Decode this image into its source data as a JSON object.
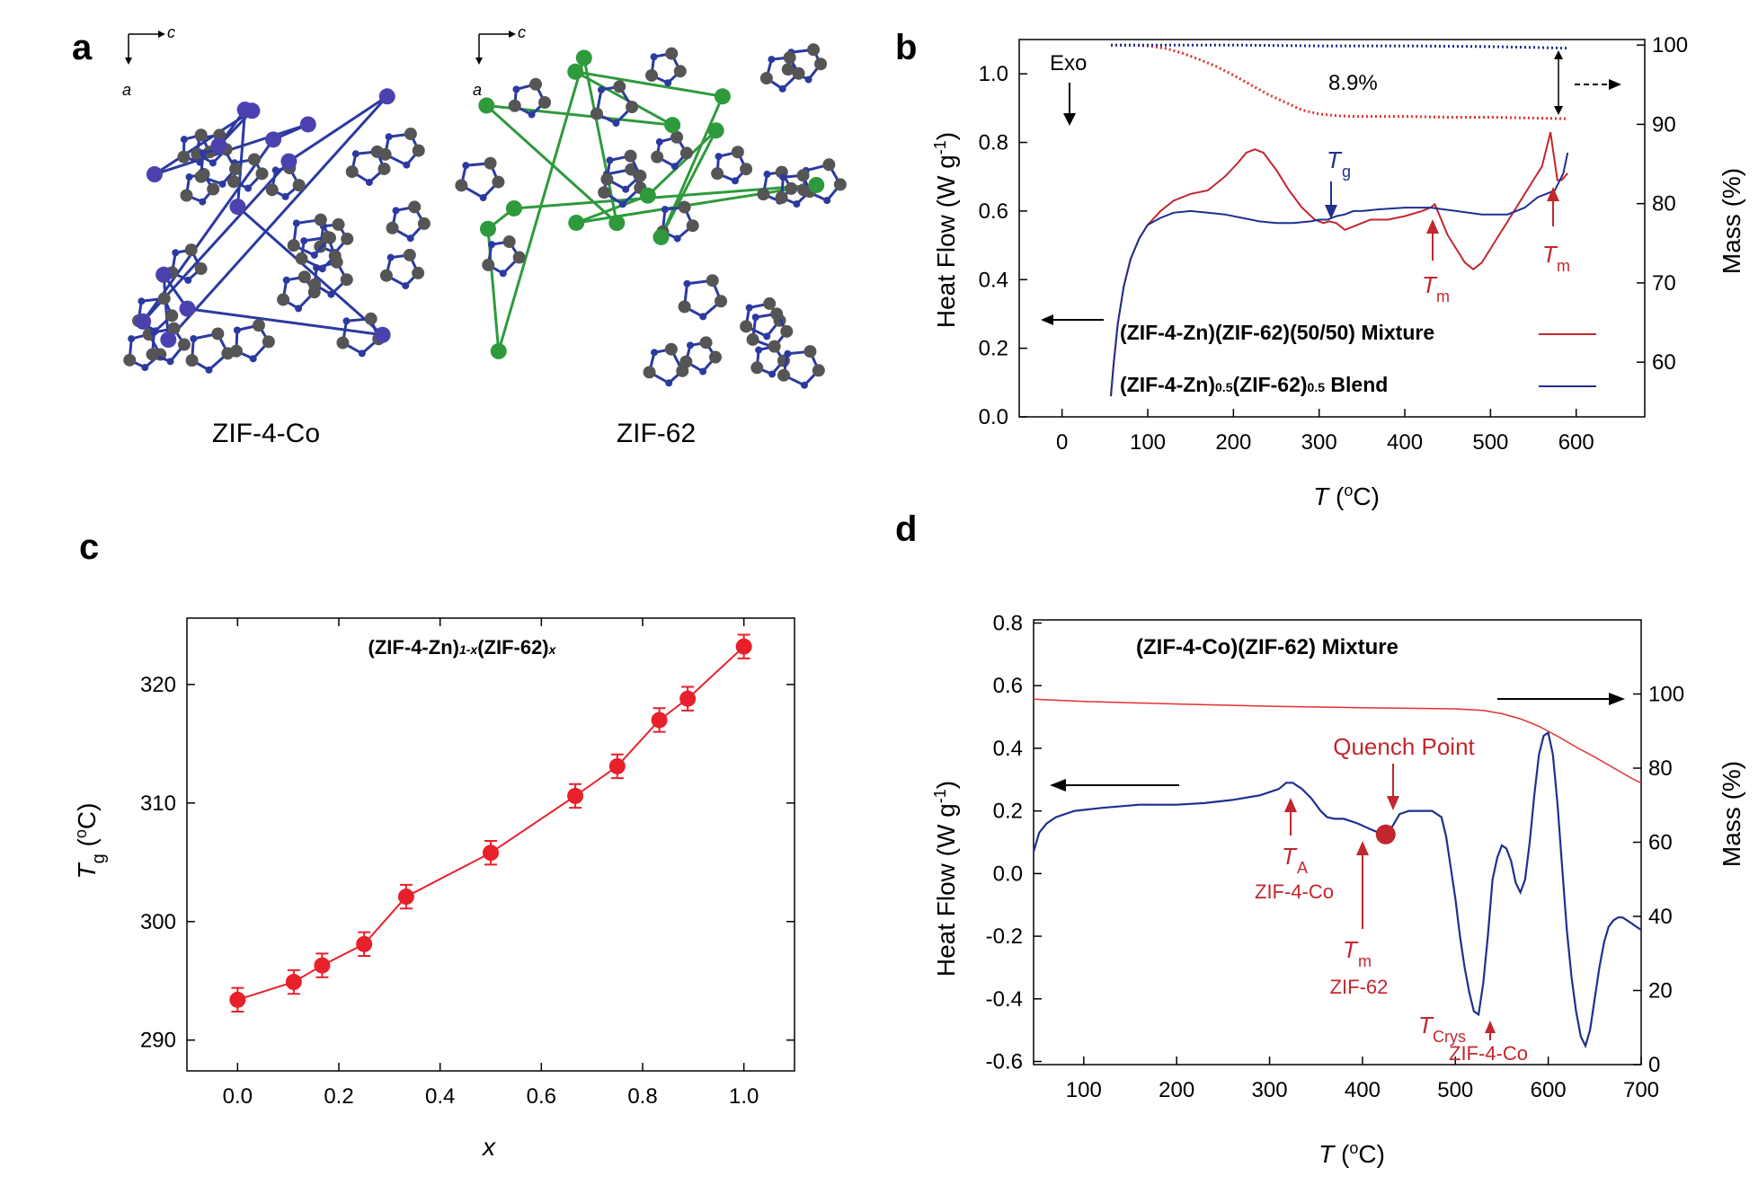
{
  "panels": {
    "a": {
      "letter": "a",
      "axis_c": "c",
      "axis_a": "a",
      "structures": [
        {
          "label": "ZIF-4-Co",
          "metal_color": "#4b42b0"
        },
        {
          "label": "ZIF-62",
          "metal_color": "#2e9a3c"
        }
      ]
    },
    "b": {
      "letter": "b"
    },
    "c": {
      "letter": "c"
    },
    "d": {
      "letter": "d"
    }
  },
  "chart_data": [
    {
      "id": "b",
      "type": "line",
      "xlabel": "T (°C)",
      "ylabel": "Heat Flow (W g-1)",
      "y2label": "Mass (%)",
      "xlim": [
        -50,
        680
      ],
      "ylim": [
        0,
        1.1
      ],
      "y2lim": [
        53.1,
        100.7
      ],
      "xticks": [
        0,
        100,
        200,
        300,
        400,
        500,
        600
      ],
      "yticks": [
        0.0,
        0.2,
        0.4,
        0.6,
        0.8,
        1.0
      ],
      "y2ticks": [
        60,
        70,
        80,
        90,
        100
      ],
      "annotations": {
        "exo": "Exo",
        "mass_loss": "8.9%",
        "tg": "T",
        "tg_sub": "g",
        "tm": "T",
        "tm_sub": "m"
      },
      "legend": [
        {
          "label": "(ZIF-4-Zn)(ZIF-62)(50/50) Mixture",
          "color": "#c1272d"
        },
        {
          "label_parts": [
            "(ZIF-4-Zn)",
            "0.5",
            "(ZIF-62)",
            "0.5",
            " Blend"
          ],
          "color": "#1f2f8f"
        }
      ],
      "series": [
        {
          "name": "(ZIF-4-Zn)(ZIF-62)(50/50) Mixture",
          "axis": "left",
          "color": "#c1272d",
          "x": [
            57,
            60,
            65,
            72,
            80,
            90,
            100,
            115,
            130,
            150,
            170,
            190,
            205,
            215,
            225,
            235,
            250,
            265,
            280,
            295,
            305,
            312,
            320,
            330,
            345,
            360,
            380,
            400,
            420,
            430,
            435,
            440,
            450,
            460,
            470,
            480,
            490,
            500,
            510,
            520,
            530,
            540,
            550,
            560,
            565,
            570,
            574,
            578,
            583,
            590
          ],
          "y": [
            0.06,
            0.15,
            0.27,
            0.38,
            0.46,
            0.52,
            0.56,
            0.6,
            0.63,
            0.65,
            0.66,
            0.7,
            0.74,
            0.77,
            0.78,
            0.77,
            0.72,
            0.66,
            0.61,
            0.575,
            0.565,
            0.57,
            0.565,
            0.545,
            0.56,
            0.575,
            0.575,
            0.585,
            0.6,
            0.61,
            0.62,
            0.59,
            0.53,
            0.49,
            0.45,
            0.43,
            0.45,
            0.49,
            0.53,
            0.57,
            0.61,
            0.65,
            0.69,
            0.73,
            0.78,
            0.83,
            0.76,
            0.69,
            0.69,
            0.71
          ]
        },
        {
          "name": "(ZIF-4-Zn)0.5(ZIF-62)0.5 Blend",
          "axis": "left",
          "color": "#1f2f8f",
          "x": [
            57,
            60,
            65,
            72,
            80,
            90,
            100,
            115,
            130,
            150,
            170,
            190,
            210,
            230,
            250,
            270,
            290,
            300,
            310,
            315,
            320,
            330,
            340,
            350,
            370,
            400,
            430,
            460,
            490,
            520,
            540,
            555,
            565,
            575,
            585,
            590
          ],
          "y": [
            0.06,
            0.15,
            0.27,
            0.38,
            0.46,
            0.52,
            0.56,
            0.58,
            0.595,
            0.6,
            0.595,
            0.59,
            0.58,
            0.57,
            0.565,
            0.565,
            0.57,
            0.575,
            0.575,
            0.58,
            0.585,
            0.59,
            0.6,
            0.6,
            0.605,
            0.61,
            0.61,
            0.6,
            0.59,
            0.59,
            0.61,
            0.64,
            0.65,
            0.66,
            0.71,
            0.77
          ]
        },
        {
          "name": "Mixture mass",
          "axis": "right",
          "color": "#e3302f",
          "style": "dotted",
          "x": [
            57,
            80,
            100,
            120,
            140,
            160,
            180,
            200,
            220,
            240,
            260,
            280,
            300,
            320,
            340,
            400,
            450,
            500,
            550,
            590
          ],
          "y": [
            100,
            100,
            99.9,
            99.6,
            99.0,
            98.2,
            97.3,
            96.2,
            95.0,
            93.8,
            92.8,
            91.8,
            91.3,
            91.1,
            91.0,
            91.0,
            90.9,
            90.9,
            90.8,
            90.7
          ]
        },
        {
          "name": "Blend mass",
          "axis": "right",
          "color": "#1f2f8f",
          "style": "dotted",
          "x": [
            57,
            100,
            200,
            300,
            400,
            500,
            550,
            590
          ],
          "y": [
            100,
            100,
            100,
            99.9,
            99.9,
            99.8,
            99.7,
            99.6
          ]
        }
      ]
    },
    {
      "id": "c",
      "type": "scatter",
      "title_parts": [
        "(ZIF-4-Zn)",
        "1-x",
        "(ZIF-62)",
        "x"
      ],
      "xlabel": "x",
      "ylabel": "Tg (°C)",
      "xlim": [
        -0.1,
        1.1
      ],
      "ylim": [
        287.4,
        325.6
      ],
      "xticks": [
        0.0,
        0.2,
        0.4,
        0.6,
        0.8,
        1.0
      ],
      "yticks": [
        290,
        300,
        310,
        320
      ],
      "color": "#e8202a",
      "x": [
        0.0,
        0.111,
        0.167,
        0.25,
        0.333,
        0.5,
        0.667,
        0.75,
        0.833,
        0.889,
        1.0
      ],
      "y": [
        293.4,
        294.9,
        296.3,
        298.1,
        302.1,
        305.8,
        310.6,
        313.1,
        317.0,
        318.8,
        323.2
      ],
      "yerr": [
        1.0,
        1.0,
        1.0,
        1.0,
        1.0,
        1.0,
        1.0,
        1.0,
        1.0,
        1.0,
        1.0
      ]
    },
    {
      "id": "d",
      "type": "line",
      "title": "(ZIF-4-Co)(ZIF-62) Mixture",
      "xlabel": "T (°C)",
      "ylabel": "Heat Flow (W g-1)",
      "y2label": "Mass (%)",
      "xlim": [
        46,
        700
      ],
      "ylim": [
        -0.61,
        0.81
      ],
      "y2lim": [
        0,
        120
      ],
      "xticks": [
        100,
        200,
        300,
        400,
        500,
        600,
        700
      ],
      "yticks": [
        -0.6,
        -0.4,
        -0.2,
        0.0,
        0.2,
        0.4,
        0.6,
        0.8
      ],
      "y2ticks": [
        0,
        20,
        40,
        60,
        80,
        100
      ],
      "annotations": {
        "quench": "Quench Point",
        "ta": "T",
        "ta_sub": "A",
        "ta_label": "ZIF-4-Co",
        "tm": "T",
        "tm_sub": "m",
        "tm_label": "ZIF-62",
        "tc": "T",
        "tc_sub": "Crys",
        "tc_label": "ZIF-4-Co"
      },
      "quench_point": {
        "x": 425,
        "y": 0.125
      },
      "series": [
        {
          "name": "Heat flow",
          "axis": "left",
          "color": "#1f2f8f",
          "x": [
            46,
            52,
            60,
            70,
            90,
            120,
            160,
            200,
            230,
            260,
            290,
            310,
            318,
            325,
            335,
            345,
            355,
            362,
            370,
            380,
            395,
            410,
            418,
            425,
            432,
            440,
            450,
            460,
            475,
            485,
            490,
            495,
            500,
            505,
            510,
            515,
            520,
            525,
            530,
            535,
            540,
            545,
            550,
            555,
            560,
            565,
            570,
            575,
            580,
            585,
            590,
            595,
            600,
            605,
            610,
            615,
            620,
            625,
            630,
            635,
            640,
            645,
            650,
            655,
            660,
            665,
            670,
            675,
            680,
            685,
            690,
            695,
            700
          ],
          "y": [
            0.07,
            0.13,
            0.16,
            0.18,
            0.2,
            0.21,
            0.22,
            0.22,
            0.225,
            0.235,
            0.25,
            0.27,
            0.29,
            0.29,
            0.27,
            0.24,
            0.2,
            0.18,
            0.175,
            0.175,
            0.16,
            0.14,
            0.13,
            0.125,
            0.15,
            0.19,
            0.2,
            0.2,
            0.2,
            0.18,
            0.12,
            0.02,
            -0.08,
            -0.2,
            -0.3,
            -0.38,
            -0.44,
            -0.45,
            -0.35,
            -0.2,
            -0.02,
            0.05,
            0.09,
            0.08,
            0.04,
            -0.03,
            -0.06,
            -0.02,
            0.1,
            0.25,
            0.38,
            0.44,
            0.45,
            0.38,
            0.22,
            0.02,
            -0.18,
            -0.33,
            -0.44,
            -0.52,
            -0.55,
            -0.5,
            -0.4,
            -0.3,
            -0.22,
            -0.17,
            -0.15,
            -0.14,
            -0.14,
            -0.15,
            -0.16,
            -0.17,
            -0.18
          ]
        },
        {
          "name": "Mass",
          "axis": "right",
          "color": "#e3302f",
          "x": [
            46,
            100,
            200,
            300,
            400,
            500,
            530,
            550,
            570,
            590,
            610,
            630,
            650,
            670,
            690,
            700
          ],
          "y": [
            98.6,
            98.0,
            97.3,
            96.7,
            96.3,
            96.0,
            95.6,
            94.7,
            93.3,
            91.3,
            88.6,
            85.7,
            83.0,
            80.1,
            77.2,
            76.0
          ]
        }
      ]
    }
  ]
}
